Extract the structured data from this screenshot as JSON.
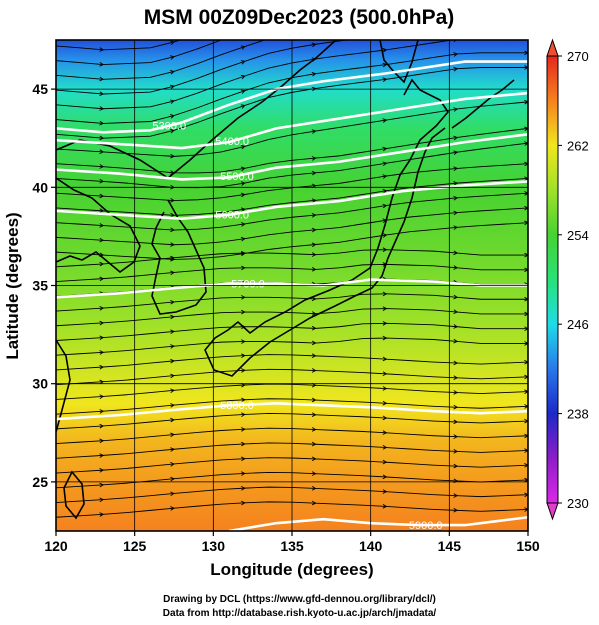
{
  "chart_data": {
    "type": "heatmap",
    "title": "MSM 00Z09Dec2023 (500.0hPa)",
    "xlabel": "Longitude (degrees)",
    "ylabel": "Latitude  (degrees)",
    "xlim": [
      120,
      150
    ],
    "ylim": [
      22.5,
      47.5
    ],
    "x_ticks": [
      "120",
      "125",
      "130",
      "135",
      "140",
      "145",
      "150"
    ],
    "y_ticks": [
      "25",
      "30",
      "35",
      "40",
      "45"
    ],
    "colorbar": {
      "min": 230,
      "max": 270,
      "tick_values": [
        230,
        238,
        246,
        254,
        262,
        270
      ],
      "tick_labels": [
        "230",
        "238",
        "246",
        "254",
        "262",
        "270"
      ]
    },
    "temperature_rows": [
      {
        "lat": 47.5,
        "value": 240
      },
      {
        "lat": 46.5,
        "value": 243
      },
      {
        "lat": 45.0,
        "value": 247
      },
      {
        "lat": 43.0,
        "value": 251
      },
      {
        "lat": 40.0,
        "value": 254
      },
      {
        "lat": 36.0,
        "value": 256
      },
      {
        "lat": 33.0,
        "value": 258
      },
      {
        "lat": 31.0,
        "value": 260
      },
      {
        "lat": 29.0,
        "value": 262
      },
      {
        "lat": 27.0,
        "value": 264
      },
      {
        "lat": 25.0,
        "value": 265
      },
      {
        "lat": 22.5,
        "value": 266
      }
    ],
    "geopotential_contours": [
      {
        "label": "5300.0",
        "label_lon": 127.2,
        "points": [
          [
            120,
            43.0
          ],
          [
            123,
            42.8
          ],
          [
            126,
            42.9
          ],
          [
            128,
            43.3
          ],
          [
            131,
            44.2
          ],
          [
            134,
            45.0
          ],
          [
            137,
            45.4
          ],
          [
            141,
            45.8
          ],
          [
            146,
            46.4
          ],
          [
            150,
            46.4
          ]
        ]
      },
      {
        "label": "5400.0",
        "label_lon": 131.2,
        "points": [
          [
            120,
            42.4
          ],
          [
            124,
            42.2
          ],
          [
            128,
            42.0
          ],
          [
            131,
            42.3
          ],
          [
            134,
            43.0
          ],
          [
            138,
            43.5
          ],
          [
            142,
            44.0
          ],
          [
            146,
            44.5
          ],
          [
            150,
            44.8
          ]
        ]
      },
      {
        "label": "5500.0",
        "label_lon": 131.5,
        "points": [
          [
            120,
            40.9
          ],
          [
            124,
            40.7
          ],
          [
            128,
            40.4
          ],
          [
            131,
            40.5
          ],
          [
            134,
            41.0
          ],
          [
            138,
            41.3
          ],
          [
            142,
            41.8
          ],
          [
            146,
            42.3
          ],
          [
            150,
            42.7
          ]
        ]
      },
      {
        "label": "5600.0",
        "label_lon": 131.2,
        "points": [
          [
            120,
            38.8
          ],
          [
            124,
            38.6
          ],
          [
            128,
            38.4
          ],
          [
            131,
            38.6
          ],
          [
            134,
            39.0
          ],
          [
            138,
            39.3
          ],
          [
            142,
            39.8
          ],
          [
            146,
            40.1
          ],
          [
            150,
            40.3
          ]
        ]
      },
      {
        "label": "5700.0",
        "label_lon": 132.2,
        "points": [
          [
            120,
            34.4
          ],
          [
            124,
            34.6
          ],
          [
            128,
            34.9
          ],
          [
            131,
            35.1
          ],
          [
            134,
            35.1
          ],
          [
            137,
            35.0
          ],
          [
            140,
            35.3
          ],
          [
            144,
            35.2
          ],
          [
            147,
            35.0
          ],
          [
            150,
            35.0
          ]
        ]
      },
      {
        "label": "5800.0",
        "label_lon": 131.5,
        "points": [
          [
            120,
            28.2
          ],
          [
            124,
            28.4
          ],
          [
            128,
            28.7
          ],
          [
            131,
            28.9
          ],
          [
            134,
            29.0
          ],
          [
            137,
            28.9
          ],
          [
            140,
            28.8
          ],
          [
            144,
            28.6
          ],
          [
            147,
            28.5
          ],
          [
            150,
            28.6
          ]
        ]
      },
      {
        "label": "5900.0",
        "label_lon": 143.5,
        "points": [
          [
            131,
            22.5
          ],
          [
            134,
            22.9
          ],
          [
            137,
            23.1
          ],
          [
            140,
            22.9
          ],
          [
            143,
            22.8
          ],
          [
            146,
            22.8
          ],
          [
            148,
            23.0
          ],
          [
            150,
            23.2
          ]
        ]
      }
    ],
    "streamlines": "westerly flow",
    "grid": true
  },
  "credits": {
    "line1": "Drawing by DCL (https://www.gfd-dennou.org/library/dcl/)",
    "line2": "Data from http://database.rish.kyoto-u.ac.jp/arch/jmadata/"
  }
}
